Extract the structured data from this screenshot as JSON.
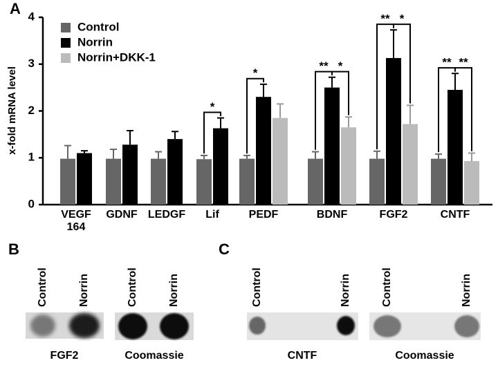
{
  "panel_labels": [
    "A",
    "B",
    "C"
  ],
  "chart_data": {
    "type": "bar",
    "ylabel": "x-fold mRNA level",
    "categories": [
      "VEGF 164",
      "GDNF",
      "LEDGF",
      "Lif",
      "PEDF",
      "BDNF",
      "FGF2",
      "CNTF"
    ],
    "series": [
      {
        "name": "Control",
        "color": "#666666",
        "values": [
          0.98,
          0.98,
          0.98,
          0.97,
          0.98,
          0.98,
          0.98,
          0.98
        ],
        "errors": [
          0.28,
          0.2,
          0.15,
          0.08,
          0.07,
          0.15,
          0.16,
          0.1
        ]
      },
      {
        "name": "Norrin",
        "color": "#000000",
        "values": [
          1.1,
          1.28,
          1.4,
          1.63,
          2.3,
          2.5,
          3.13,
          2.45
        ],
        "errors": [
          0.05,
          0.3,
          0.16,
          0.22,
          0.27,
          0.22,
          0.6,
          0.35
        ]
      },
      {
        "name": "Norrin+DKK-1",
        "color": "#bbbbbb",
        "values": [
          null,
          null,
          null,
          null,
          1.85,
          1.65,
          1.72,
          0.93
        ],
        "errors": [
          null,
          null,
          null,
          null,
          0.3,
          0.22,
          0.4,
          0.17
        ]
      }
    ],
    "ylim": [
      0,
      4
    ],
    "yticks": [
      0,
      1,
      2,
      3,
      4
    ],
    "legend": "upper-left",
    "annotations": [
      {
        "text": "*",
        "category": "Lif",
        "from": "Control",
        "to": "Norrin"
      },
      {
        "text": "*",
        "category": "PEDF",
        "from": "Control",
        "to": "Norrin"
      },
      {
        "text": "**",
        "category": "BDNF",
        "from": "Control",
        "to": "Norrin"
      },
      {
        "text": "*",
        "category": "BDNF",
        "from": "Norrin",
        "to": "Norrin+DKK-1"
      },
      {
        "text": "**",
        "category": "FGF2",
        "from": "Control",
        "to": "Norrin"
      },
      {
        "text": "*",
        "category": "FGF2",
        "from": "Norrin",
        "to": "Norrin+DKK-1"
      },
      {
        "text": "**",
        "category": "CNTF",
        "from": "Control",
        "to": "Norrin"
      },
      {
        "text": "**",
        "category": "CNTF",
        "from": "Norrin",
        "to": "Norrin+DKK-1"
      }
    ]
  },
  "blots": [
    {
      "lanes": [
        "Control",
        "Norrin"
      ],
      "caption": "FGF2"
    },
    {
      "lanes": [
        "Control",
        "Norrin"
      ],
      "caption": "Coomassie"
    },
    {
      "lanes": [
        "Control",
        "Norrin"
      ],
      "caption": "CNTF"
    },
    {
      "lanes": [
        "Control",
        "Norrin"
      ],
      "caption": "Coomassie"
    }
  ]
}
